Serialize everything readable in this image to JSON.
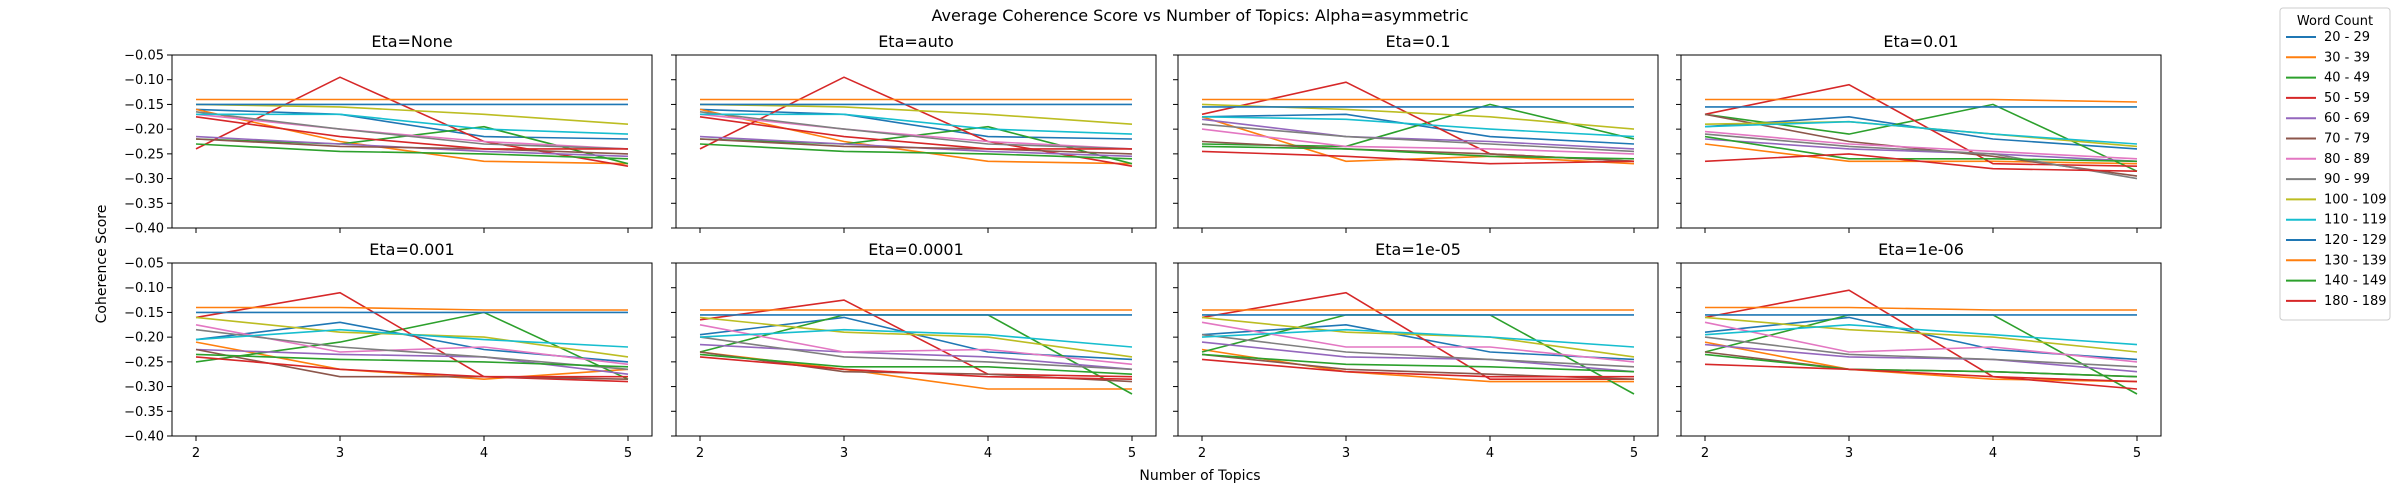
{
  "figure": {
    "title": "Average Coherence Score vs Number of Topics: Alpha=asymmetric",
    "xlabel": "Number of Topics",
    "ylabel": "Coherence Score",
    "legend_title": "Word Count"
  },
  "colors": [
    "#1f77b4",
    "#ff7f0e",
    "#2ca02c",
    "#d62728",
    "#9467bd",
    "#8c564b",
    "#e377c2",
    "#7f7f7f",
    "#bcbd22",
    "#17becf",
    "#1f77b4",
    "#ff7f0e",
    "#2ca02c",
    "#d62728"
  ],
  "chart_data": {
    "type": "line",
    "x": [
      2,
      3,
      4,
      5
    ],
    "xticks": [
      "2",
      "3",
      "4",
      "5"
    ],
    "ylim": [
      -0.4,
      -0.05
    ],
    "yticks": [
      "−0.05",
      "−0.10",
      "−0.15",
      "−0.20",
      "−0.25",
      "−0.30",
      "−0.35",
      "−0.40"
    ],
    "ytick_values": [
      -0.05,
      -0.1,
      -0.15,
      -0.2,
      -0.25,
      -0.3,
      -0.35,
      -0.4
    ],
    "series_names": [
      "20 - 29",
      "30 - 39",
      "40 - 49",
      "50 - 59",
      "60 - 69",
      "70 - 79",
      "80 - 89",
      "90 - 99",
      "100 - 109",
      "110 - 119",
      "120 - 129",
      "130 - 139",
      "140 - 149",
      "180 - 189"
    ],
    "legend_position": "outside-right",
    "grid": false,
    "panels": [
      {
        "title": "Eta=None",
        "series": [
          [
            -0.16,
            -0.17,
            -0.215,
            -0.22
          ],
          [
            -0.16,
            -0.225,
            -0.265,
            -0.27
          ],
          [
            -0.22,
            -0.23,
            -0.195,
            -0.27
          ],
          [
            -0.24,
            -0.095,
            -0.225,
            -0.275
          ],
          [
            -0.215,
            -0.23,
            -0.245,
            -0.255
          ],
          [
            -0.22,
            -0.235,
            -0.24,
            -0.25
          ],
          [
            -0.17,
            -0.2,
            -0.225,
            -0.24
          ],
          [
            -0.165,
            -0.2,
            -0.23,
            -0.24
          ],
          [
            -0.15,
            -0.155,
            -0.17,
            -0.19
          ],
          [
            -0.17,
            -0.17,
            -0.2,
            -0.21
          ],
          [
            -0.15,
            -0.15,
            -0.15,
            -0.15
          ],
          [
            -0.14,
            -0.14,
            -0.14,
            -0.14
          ],
          [
            -0.23,
            -0.245,
            -0.25,
            -0.26
          ],
          [
            -0.175,
            -0.215,
            -0.24,
            -0.24
          ]
        ]
      },
      {
        "title": "Eta=auto",
        "series": [
          [
            -0.16,
            -0.17,
            -0.215,
            -0.22
          ],
          [
            -0.16,
            -0.225,
            -0.265,
            -0.27
          ],
          [
            -0.22,
            -0.23,
            -0.195,
            -0.27
          ],
          [
            -0.24,
            -0.095,
            -0.225,
            -0.275
          ],
          [
            -0.215,
            -0.23,
            -0.245,
            -0.255
          ],
          [
            -0.22,
            -0.235,
            -0.24,
            -0.25
          ],
          [
            -0.17,
            -0.2,
            -0.225,
            -0.24
          ],
          [
            -0.165,
            -0.2,
            -0.23,
            -0.24
          ],
          [
            -0.15,
            -0.155,
            -0.17,
            -0.19
          ],
          [
            -0.17,
            -0.17,
            -0.2,
            -0.21
          ],
          [
            -0.15,
            -0.15,
            -0.15,
            -0.15
          ],
          [
            -0.14,
            -0.14,
            -0.14,
            -0.14
          ],
          [
            -0.23,
            -0.245,
            -0.25,
            -0.26
          ],
          [
            -0.175,
            -0.215,
            -0.24,
            -0.24
          ]
        ]
      },
      {
        "title": "Eta=0.1",
        "series": [
          [
            -0.175,
            -0.17,
            -0.215,
            -0.23
          ],
          [
            -0.175,
            -0.265,
            -0.255,
            -0.27
          ],
          [
            -0.23,
            -0.235,
            -0.15,
            -0.22
          ],
          [
            -0.17,
            -0.105,
            -0.25,
            -0.265
          ],
          [
            -0.18,
            -0.215,
            -0.225,
            -0.24
          ],
          [
            -0.225,
            -0.24,
            -0.25,
            -0.265
          ],
          [
            -0.2,
            -0.235,
            -0.24,
            -0.25
          ],
          [
            -0.19,
            -0.215,
            -0.23,
            -0.245
          ],
          [
            -0.15,
            -0.16,
            -0.175,
            -0.2
          ],
          [
            -0.175,
            -0.18,
            -0.2,
            -0.215
          ],
          [
            -0.155,
            -0.155,
            -0.155,
            -0.155
          ],
          [
            -0.14,
            -0.14,
            -0.14,
            -0.14
          ],
          [
            -0.235,
            -0.24,
            -0.255,
            -0.26
          ],
          [
            -0.245,
            -0.255,
            -0.27,
            -0.265
          ]
        ]
      },
      {
        "title": "Eta=0.01",
        "series": [
          [
            -0.195,
            -0.175,
            -0.22,
            -0.24
          ],
          [
            -0.23,
            -0.265,
            -0.265,
            -0.27
          ],
          [
            -0.17,
            -0.21,
            -0.15,
            -0.285
          ],
          [
            -0.17,
            -0.11,
            -0.27,
            -0.275
          ],
          [
            -0.22,
            -0.24,
            -0.25,
            -0.265
          ],
          [
            -0.17,
            -0.225,
            -0.255,
            -0.295
          ],
          [
            -0.205,
            -0.23,
            -0.245,
            -0.26
          ],
          [
            -0.21,
            -0.235,
            -0.25,
            -0.3
          ],
          [
            -0.19,
            -0.185,
            -0.21,
            -0.235
          ],
          [
            -0.195,
            -0.185,
            -0.21,
            -0.23
          ],
          [
            -0.155,
            -0.155,
            -0.155,
            -0.155
          ],
          [
            -0.14,
            -0.14,
            -0.14,
            -0.145
          ],
          [
            -0.215,
            -0.26,
            -0.26,
            -0.265
          ],
          [
            -0.265,
            -0.25,
            -0.28,
            -0.285
          ]
        ]
      },
      {
        "title": "Eta=0.001",
        "series": [
          [
            -0.205,
            -0.17,
            -0.225,
            -0.25
          ],
          [
            -0.21,
            -0.265,
            -0.285,
            -0.265
          ],
          [
            -0.25,
            -0.21,
            -0.15,
            -0.285
          ],
          [
            -0.16,
            -0.11,
            -0.28,
            -0.29
          ],
          [
            -0.225,
            -0.235,
            -0.24,
            -0.275
          ],
          [
            -0.225,
            -0.28,
            -0.28,
            -0.285
          ],
          [
            -0.175,
            -0.23,
            -0.22,
            -0.255
          ],
          [
            -0.185,
            -0.22,
            -0.24,
            -0.265
          ],
          [
            -0.16,
            -0.19,
            -0.2,
            -0.24
          ],
          [
            -0.205,
            -0.185,
            -0.205,
            -0.22
          ],
          [
            -0.15,
            -0.15,
            -0.15,
            -0.15
          ],
          [
            -0.14,
            -0.14,
            -0.145,
            -0.145
          ],
          [
            -0.235,
            -0.245,
            -0.25,
            -0.26
          ],
          [
            -0.24,
            -0.265,
            -0.28,
            -0.28
          ]
        ]
      },
      {
        "title": "Eta=0.0001",
        "series": [
          [
            -0.195,
            -0.16,
            -0.23,
            -0.245
          ],
          [
            -0.23,
            -0.265,
            -0.305,
            -0.305
          ],
          [
            -0.23,
            -0.155,
            -0.155,
            -0.315
          ],
          [
            -0.165,
            -0.125,
            -0.275,
            -0.28
          ],
          [
            -0.215,
            -0.23,
            -0.24,
            -0.265
          ],
          [
            -0.23,
            -0.27,
            -0.275,
            -0.29
          ],
          [
            -0.175,
            -0.23,
            -0.225,
            -0.255
          ],
          [
            -0.2,
            -0.24,
            -0.25,
            -0.265
          ],
          [
            -0.16,
            -0.19,
            -0.2,
            -0.24
          ],
          [
            -0.2,
            -0.185,
            -0.195,
            -0.22
          ],
          [
            -0.155,
            -0.155,
            -0.155,
            -0.155
          ],
          [
            -0.145,
            -0.145,
            -0.145,
            -0.145
          ],
          [
            -0.235,
            -0.26,
            -0.26,
            -0.275
          ],
          [
            -0.24,
            -0.265,
            -0.28,
            -0.285
          ]
        ]
      },
      {
        "title": "Eta=1e-05",
        "series": [
          [
            -0.195,
            -0.175,
            -0.23,
            -0.245
          ],
          [
            -0.225,
            -0.27,
            -0.29,
            -0.29
          ],
          [
            -0.23,
            -0.155,
            -0.155,
            -0.315
          ],
          [
            -0.16,
            -0.11,
            -0.285,
            -0.285
          ],
          [
            -0.21,
            -0.24,
            -0.245,
            -0.27
          ],
          [
            -0.235,
            -0.265,
            -0.275,
            -0.285
          ],
          [
            -0.17,
            -0.22,
            -0.22,
            -0.25
          ],
          [
            -0.195,
            -0.23,
            -0.245,
            -0.26
          ],
          [
            -0.16,
            -0.19,
            -0.2,
            -0.24
          ],
          [
            -0.2,
            -0.185,
            -0.2,
            -0.22
          ],
          [
            -0.155,
            -0.155,
            -0.155,
            -0.155
          ],
          [
            -0.145,
            -0.145,
            -0.145,
            -0.145
          ],
          [
            -0.235,
            -0.255,
            -0.26,
            -0.27
          ],
          [
            -0.245,
            -0.27,
            -0.28,
            -0.28
          ]
        ]
      },
      {
        "title": "Eta=1e-06",
        "series": [
          [
            -0.19,
            -0.16,
            -0.225,
            -0.245
          ],
          [
            -0.21,
            -0.265,
            -0.285,
            -0.29
          ],
          [
            -0.23,
            -0.155,
            -0.155,
            -0.315
          ],
          [
            -0.16,
            -0.105,
            -0.28,
            -0.305
          ],
          [
            -0.215,
            -0.24,
            -0.245,
            -0.27
          ],
          [
            -0.23,
            -0.265,
            -0.27,
            -0.28
          ],
          [
            -0.17,
            -0.23,
            -0.22,
            -0.25
          ],
          [
            -0.2,
            -0.235,
            -0.245,
            -0.26
          ],
          [
            -0.16,
            -0.185,
            -0.2,
            -0.23
          ],
          [
            -0.195,
            -0.175,
            -0.195,
            -0.215
          ],
          [
            -0.155,
            -0.155,
            -0.155,
            -0.155
          ],
          [
            -0.14,
            -0.14,
            -0.145,
            -0.145
          ],
          [
            -0.235,
            -0.265,
            -0.27,
            -0.28
          ],
          [
            -0.255,
            -0.265,
            -0.28,
            -0.29
          ]
        ]
      }
    ]
  }
}
